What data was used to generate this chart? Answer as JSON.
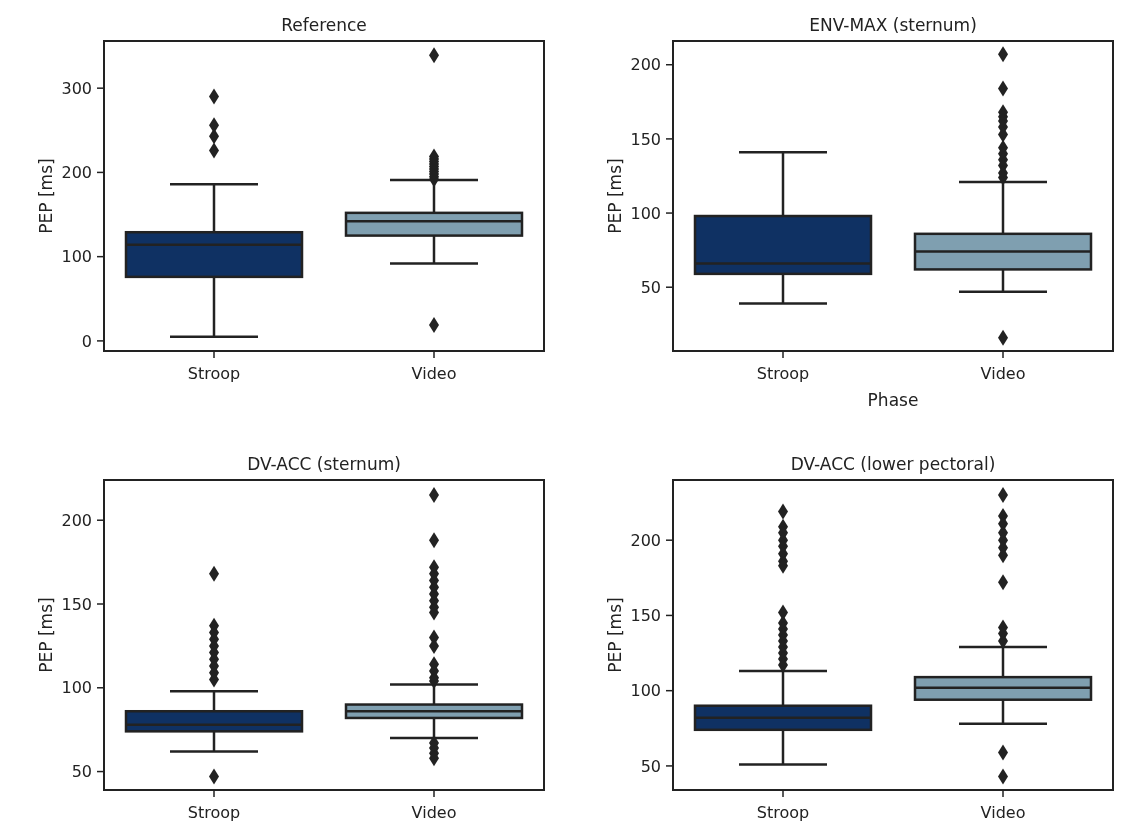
{
  "chart_data": [
    {
      "type": "box",
      "title": "Reference",
      "ylabel": "PEP [ms]",
      "categories": [
        "Stroop",
        "Video"
      ],
      "colors": [
        "#0f3163",
        "#7f9fb0"
      ],
      "marker": "diamond",
      "grid": false,
      "ylim": [
        -12,
        356
      ],
      "yticks": [
        0,
        100,
        200,
        300
      ],
      "boxes": [
        {
          "low": 5,
          "q1": 76,
          "median": 114,
          "q3": 129,
          "high": 186,
          "outliers": [
            290,
            256,
            243,
            226
          ]
        },
        {
          "low": 92,
          "q1": 125,
          "median": 142,
          "q3": 152,
          "high": 191,
          "outliers": [
            339,
            192,
            195,
            198,
            201,
            204,
            207,
            210,
            213,
            216,
            219,
            19
          ]
        }
      ]
    },
    {
      "type": "box",
      "title": "ENV-MAX (sternum)",
      "xlabel": "Phase",
      "ylabel": "PEP [ms]",
      "categories": [
        "Stroop",
        "Video"
      ],
      "colors": [
        "#0f3163",
        "#7f9fb0"
      ],
      "marker": "diamond",
      "grid": false,
      "ylim": [
        7,
        216
      ],
      "yticks": [
        50,
        100,
        150,
        200
      ],
      "boxes": [
        {
          "low": 39,
          "q1": 59,
          "median": 66,
          "q3": 98,
          "high": 141
        },
        {
          "low": 47,
          "q1": 62,
          "median": 74,
          "q3": 86,
          "high": 121,
          "outliers": [
            207,
            184,
            168,
            165,
            162,
            158,
            153,
            144,
            140,
            136,
            132,
            127,
            124,
            16
          ]
        }
      ]
    },
    {
      "type": "box",
      "title": "DV-ACC (sternum)",
      "ylabel": "PEP [ms]",
      "categories": [
        "Stroop",
        "Video"
      ],
      "colors": [
        "#0f3163",
        "#7f9fb0"
      ],
      "marker": "diamond",
      "grid": false,
      "ylim": [
        39,
        224
      ],
      "yticks": [
        50,
        100,
        150,
        200
      ],
      "boxes": [
        {
          "low": 62,
          "q1": 74,
          "median": 78,
          "q3": 86,
          "high": 98,
          "outliers": [
            168,
            137,
            133,
            129,
            125,
            121,
            117,
            113,
            109,
            105,
            47
          ]
        },
        {
          "low": 70,
          "q1": 82,
          "median": 86,
          "q3": 90,
          "high": 102,
          "outliers": [
            215,
            188,
            172,
            168,
            164,
            160,
            156,
            152,
            148,
            145,
            130,
            125,
            114,
            110,
            106,
            104,
            67,
            64,
            61,
            58
          ]
        }
      ]
    },
    {
      "type": "box",
      "title": "DV-ACC (lower pectoral)",
      "ylabel": "PEP [ms]",
      "categories": [
        "Stroop",
        "Video"
      ],
      "colors": [
        "#0f3163",
        "#7f9fb0"
      ],
      "marker": "diamond",
      "grid": false,
      "ylim": [
        34,
        240
      ],
      "yticks": [
        50,
        100,
        150,
        200
      ],
      "boxes": [
        {
          "low": 51,
          "q1": 74,
          "median": 82,
          "q3": 90,
          "high": 113,
          "outliers": [
            219,
            209,
            205,
            200,
            196,
            191,
            186,
            183,
            152,
            145,
            141,
            137,
            133,
            129,
            125,
            121,
            117
          ]
        },
        {
          "low": 78,
          "q1": 94,
          "median": 102,
          "q3": 109,
          "high": 129,
          "outliers": [
            230,
            216,
            211,
            205,
            200,
            195,
            190,
            172,
            142,
            138,
            133,
            59,
            43
          ]
        }
      ]
    }
  ]
}
